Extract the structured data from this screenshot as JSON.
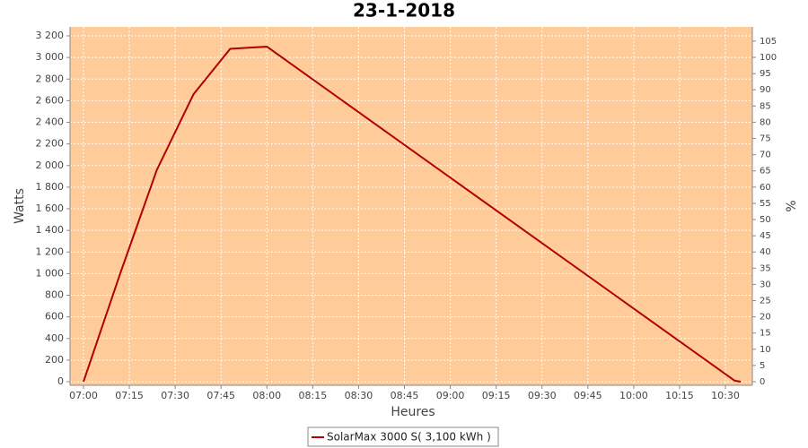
{
  "chart_data": {
    "type": "line",
    "title": "23-1-2018",
    "xlabel": "Heures",
    "ylabel": "Watts",
    "y2label": "%",
    "x": [
      420,
      432,
      444,
      456,
      468,
      474,
      480,
      633,
      635
    ],
    "series": [
      {
        "name": "SolarMax 3000 S( 3,100 kWh )",
        "color": "#b00000",
        "values": [
          0,
          1000,
          1960,
          2660,
          3080,
          3090,
          3100,
          10,
          0
        ]
      }
    ],
    "xlim": [
      415.6,
      638.8
    ],
    "xticks": [
      {
        "value": 420,
        "label": "07:00"
      },
      {
        "value": 435,
        "label": "07:15"
      },
      {
        "value": 450,
        "label": "07:30"
      },
      {
        "value": 465,
        "label": "07:45"
      },
      {
        "value": 480,
        "label": "08:00"
      },
      {
        "value": 495,
        "label": "08:15"
      },
      {
        "value": 510,
        "label": "08:30"
      },
      {
        "value": 525,
        "label": "08:45"
      },
      {
        "value": 540,
        "label": "09:00"
      },
      {
        "value": 555,
        "label": "09:15"
      },
      {
        "value": 570,
        "label": "09:30"
      },
      {
        "value": 585,
        "label": "09:45"
      },
      {
        "value": 600,
        "label": "10:00"
      },
      {
        "value": 615,
        "label": "10:15"
      },
      {
        "value": 630,
        "label": "10:30"
      }
    ],
    "ylim": [
      -33,
      3283
    ],
    "yticks": [
      0,
      200,
      400,
      600,
      800,
      {
        "value": 1000,
        "label": "1 000"
      },
      {
        "value": 1200,
        "label": "1 200"
      },
      {
        "value": 1400,
        "label": "1 400"
      },
      {
        "value": 1600,
        "label": "1 600"
      },
      {
        "value": 1800,
        "label": "1 800"
      },
      {
        "value": 2000,
        "label": "2 000"
      },
      {
        "value": 2200,
        "label": "2 200"
      },
      {
        "value": 2400,
        "label": "2 400"
      },
      {
        "value": 2600,
        "label": "2 600"
      },
      {
        "value": 2800,
        "label": "2 800"
      },
      {
        "value": 3000,
        "label": "3 000"
      },
      {
        "value": 3200,
        "label": "3 200"
      }
    ],
    "y2lim": [
      -1.1,
      109.4
    ],
    "y2ticks": [
      0,
      5,
      10,
      15,
      20,
      25,
      30,
      35,
      40,
      45,
      50,
      55,
      60,
      65,
      70,
      75,
      80,
      85,
      90,
      95,
      100,
      105
    ],
    "grid": true,
    "plot_background": "#ffcc99",
    "legend": "bottom"
  }
}
